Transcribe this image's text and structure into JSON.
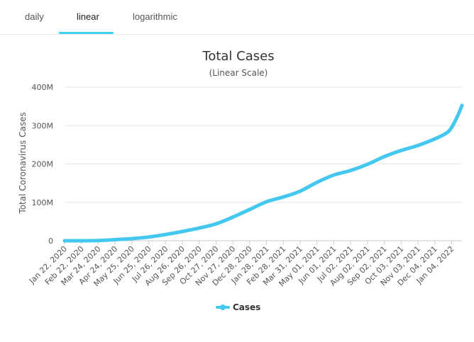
{
  "tabs": [
    {
      "label": "daily",
      "active": false
    },
    {
      "label": "linear",
      "active": true
    },
    {
      "label": "logarithmic",
      "active": false
    }
  ],
  "colors": {
    "series": "#45c8f0",
    "tab_accent": "#3fd0f5",
    "grid": "#e6e6e6",
    "text": "#333333"
  },
  "chart_data": {
    "type": "line",
    "title": "Total Cases",
    "subtitle": "(Linear Scale)",
    "xlabel": "",
    "ylabel": "Total Coronavirus Cases",
    "ylim": [
      0,
      400000000
    ],
    "yticks": [
      {
        "value": 0,
        "label": "0"
      },
      {
        "value": 100000000,
        "label": "100M"
      },
      {
        "value": 200000000,
        "label": "200M"
      },
      {
        "value": 300000000,
        "label": "300M"
      },
      {
        "value": 400000000,
        "label": "400M"
      }
    ],
    "grid": true,
    "legend_position": "bottom-center",
    "xtick_labels": [
      "Jan 22, 2020",
      "Feb 22, 2020",
      "Mar 24, 2020",
      "Apr 24, 2020",
      "May 25, 2020",
      "Jun 25, 2020",
      "Jul 26, 2020",
      "Aug 26, 2020",
      "Sep 26, 2020",
      "Oct 27, 2020",
      "Nov 27, 2020",
      "Dec 28, 2020",
      "Jan 28, 2021",
      "Feb 28, 2021",
      "Mar 31, 2021",
      "May 01, 2021",
      "Jun 01, 2021",
      "Jul 02, 2021",
      "Aug 02, 2021",
      "Sep 02, 2021",
      "Oct 03, 2021",
      "Nov 03, 2021",
      "Dec 04, 2021",
      "Jan 04, 2022"
    ],
    "series": [
      {
        "name": "Cases",
        "color": "#45c8f0",
        "points": [
          [
            "Jan 22, 2020",
            0
          ],
          [
            "Feb 22, 2020",
            80000
          ],
          [
            "Mar 24, 2020",
            420000
          ],
          [
            "Apr 24, 2020",
            2800000
          ],
          [
            "May 25, 2020",
            5500000
          ],
          [
            "Jun 25, 2020",
            9700000
          ],
          [
            "Jul 26, 2020",
            16300000
          ],
          [
            "Aug 26, 2020",
            24100000
          ],
          [
            "Sep 26, 2020",
            33000000
          ],
          [
            "Oct 27, 2020",
            44000000
          ],
          [
            "Nov 27, 2020",
            61500000
          ],
          [
            "Dec 28, 2020",
            81500000
          ],
          [
            "Jan 28, 2021",
            101500000
          ],
          [
            "Feb 28, 2021",
            114000000
          ],
          [
            "Mar 31, 2021",
            129000000
          ],
          [
            "May 01, 2021",
            152000000
          ],
          [
            "Jun 01, 2021",
            171000000
          ],
          [
            "Jul 02, 2021",
            183000000
          ],
          [
            "Aug 02, 2021",
            199000000
          ],
          [
            "Sep 02, 2021",
            219000000
          ],
          [
            "Oct 03, 2021",
            235000000
          ],
          [
            "Nov 03, 2021",
            248000000
          ],
          [
            "Dec 04, 2021",
            265000000
          ],
          [
            "Dec 25, 2021",
            280000000
          ],
          [
            "Jan 04, 2022",
            295000000
          ],
          [
            "Jan 15, 2022",
            325000000
          ],
          [
            "Jan 23, 2022",
            352000000
          ]
        ]
      }
    ]
  }
}
